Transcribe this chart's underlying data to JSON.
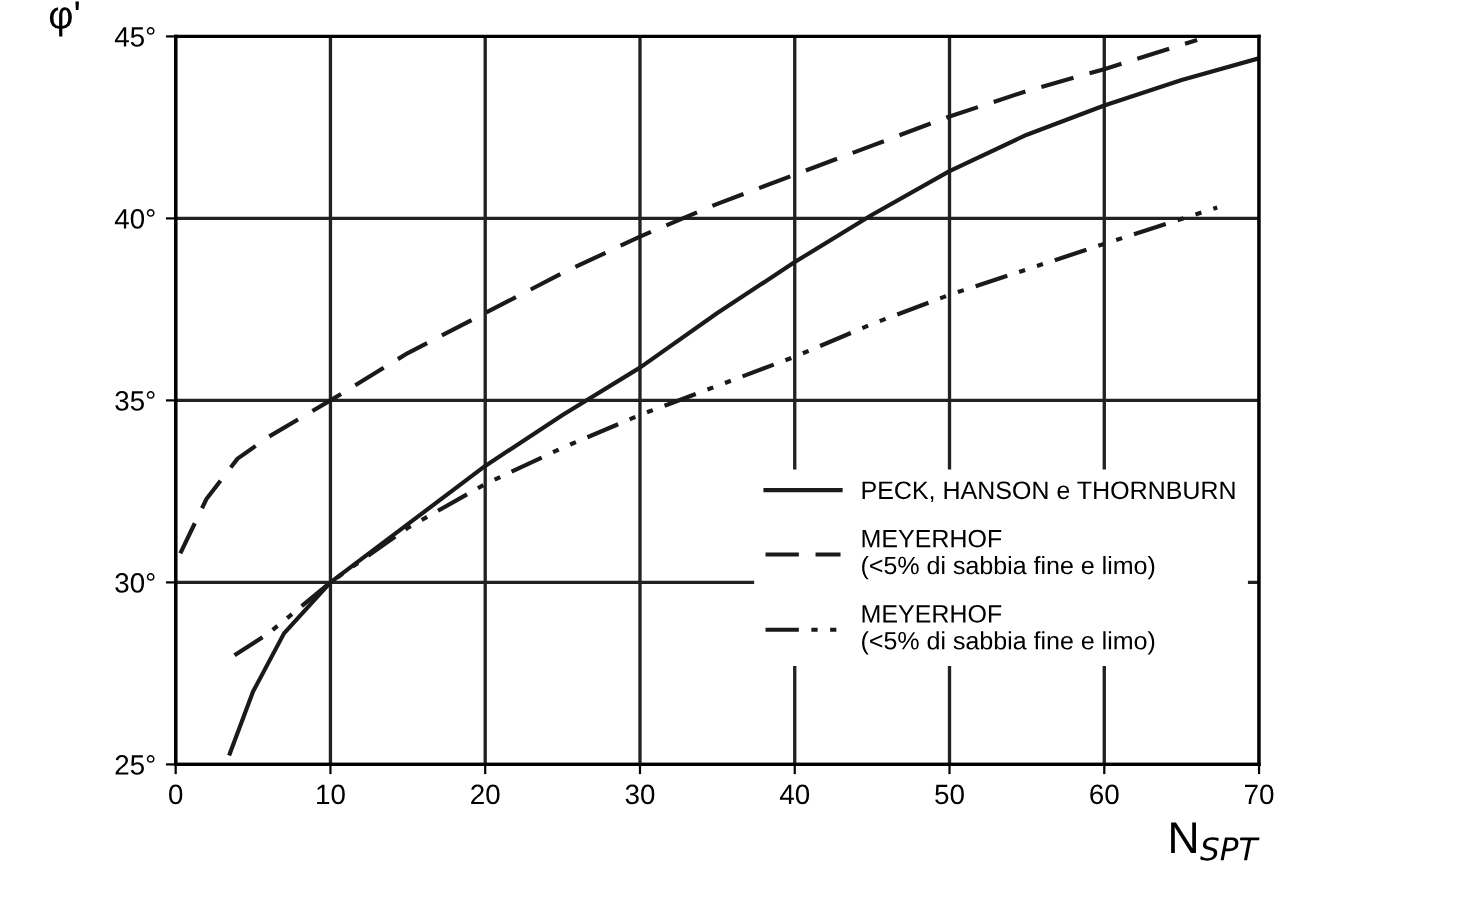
{
  "chart_data": {
    "type": "line",
    "ylabel": "φ'",
    "xlabel": "N$_{SPT}$",
    "xlim": [
      0,
      70
    ],
    "xticks": [
      0,
      10,
      20,
      30,
      40,
      50,
      60,
      70
    ],
    "ylim": [
      25,
      45
    ],
    "yticks": [
      {
        "value": 25,
        "label": "25°"
      },
      {
        "value": 30,
        "label": "30°"
      },
      {
        "value": 35,
        "label": "35°"
      },
      {
        "value": 40,
        "label": "40°"
      },
      {
        "value": 45,
        "label": "45°"
      }
    ],
    "grid": true,
    "legend": "bottom right",
    "marker": "none",
    "series": [
      {
        "name": "PECK, HANSON e THORNBURN",
        "color": "#1a1a1a",
        "line_style": "solid",
        "x": [
          3.5,
          5,
          7,
          10,
          15,
          20,
          25,
          30,
          35,
          40,
          45,
          50,
          55,
          60,
          65,
          70
        ],
        "values": [
          25.3,
          27.0,
          28.6,
          30.0,
          31.6,
          33.2,
          34.6,
          35.9,
          37.4,
          38.8,
          40.1,
          41.3,
          42.3,
          43.1,
          43.8,
          44.4
        ]
      },
      {
        "name": "MEYERHOF\n(<5% di sabbia fine e limo)",
        "color": "#1a1a1a",
        "line_style": "dashed",
        "x": [
          0.3,
          2,
          4,
          6,
          10,
          15,
          20,
          25,
          30,
          35,
          40,
          45,
          50,
          55,
          60,
          66
        ],
        "values": [
          30.8,
          32.3,
          33.4,
          34.0,
          35.0,
          36.3,
          37.4,
          38.5,
          39.5,
          40.4,
          41.2,
          42.0,
          42.8,
          43.5,
          44.1,
          44.9
        ]
      },
      {
        "name": "MEYERHOF\n(<5% di sabbia fine e limo)",
        "color": "#1a1a1a",
        "line_style": "dashdot",
        "x": [
          3.8,
          6,
          8,
          10,
          15,
          20,
          25,
          30,
          35,
          40,
          45,
          50,
          55,
          60,
          67.3
        ],
        "values": [
          28.0,
          28.6,
          29.3,
          30.0,
          31.5,
          32.7,
          33.7,
          34.6,
          35.4,
          36.2,
          37.1,
          37.9,
          38.6,
          39.3,
          40.3
        ]
      }
    ]
  }
}
